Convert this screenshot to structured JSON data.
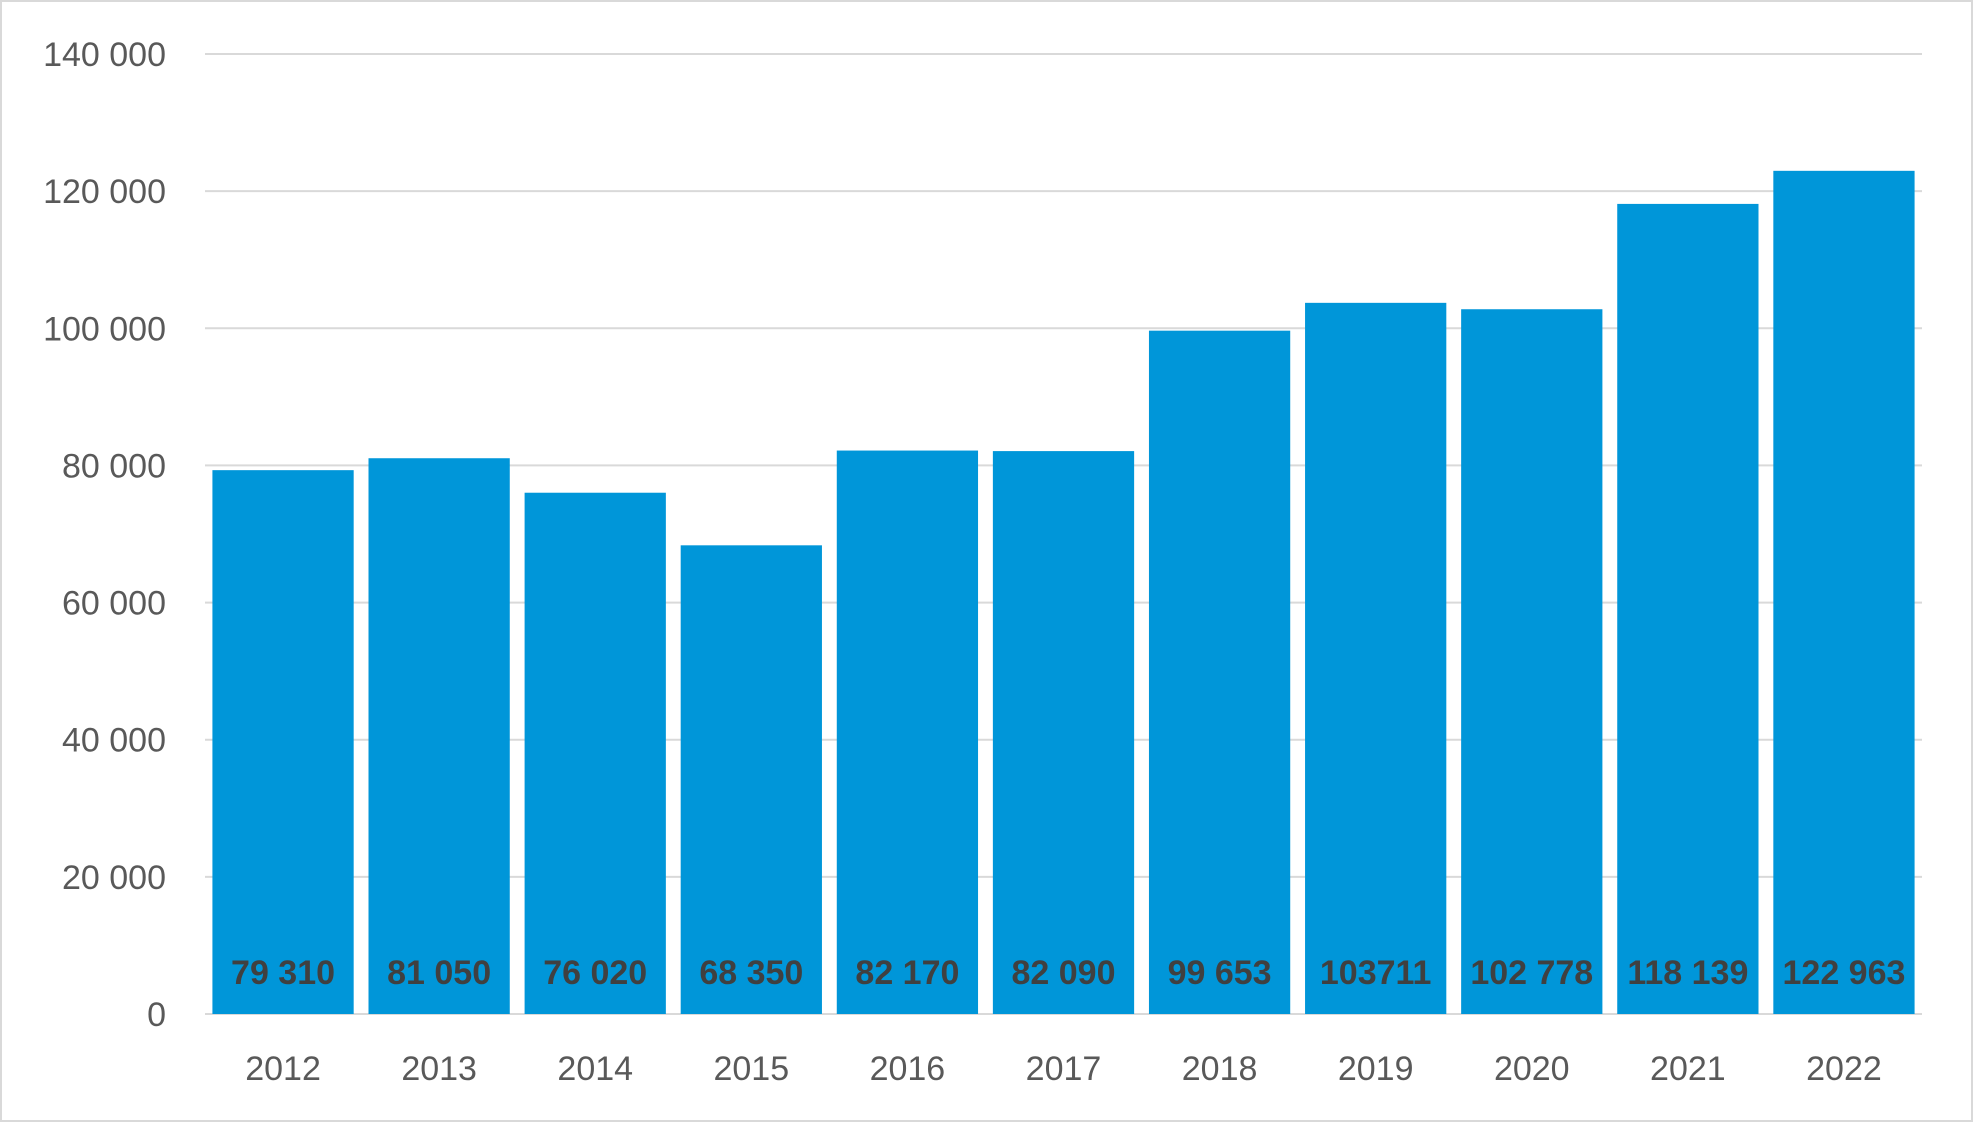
{
  "chart_data": {
    "type": "bar",
    "title": "",
    "xlabel": "",
    "ylabel": "",
    "categories": [
      "2012",
      "2013",
      "2014",
      "2015",
      "2016",
      "2017",
      "2018",
      "2019",
      "2020",
      "2021",
      "2022"
    ],
    "values": [
      79310,
      81050,
      76020,
      68350,
      82170,
      82090,
      99653,
      103711,
      102778,
      118139,
      122963
    ],
    "data_labels": [
      "79 310",
      "81 050",
      "76 020",
      "68 350",
      "82 170",
      "82 090",
      "99 653",
      "103711",
      "102 778",
      "118 139",
      "122 963"
    ],
    "data_label_position": "inside-base",
    "ylim": [
      0,
      140000
    ],
    "yticks": [
      0,
      20000,
      40000,
      60000,
      80000,
      100000,
      120000,
      140000
    ],
    "ytick_labels": [
      "0",
      "20 000",
      "40 000",
      "60 000",
      "80 000",
      "100 000",
      "120 000",
      "140 000"
    ],
    "grid": true,
    "legend": "none",
    "colors": {
      "bar": "#0096d9",
      "grid": "#d9d9d9",
      "tick_text": "#595959",
      "data_label_text": "#404040",
      "border": "#d9d9d9"
    }
  }
}
